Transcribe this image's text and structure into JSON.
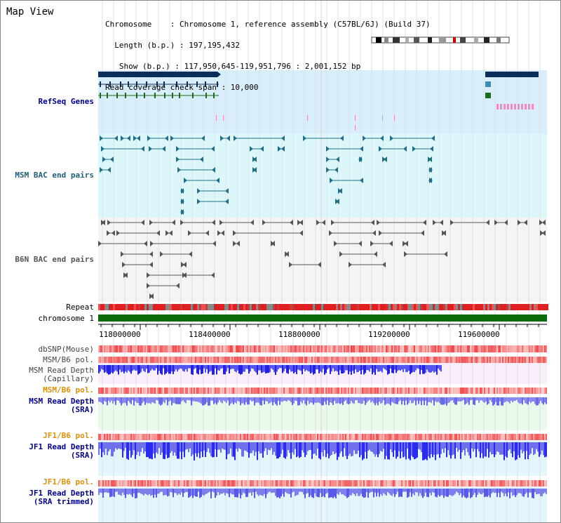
{
  "window": {
    "title": "Map View"
  },
  "header": {
    "lines": [
      "Chromosome    : Chromosome 1, reference assembly (C57BL/6J) (Build 37)",
      "  Length (b.p.) : 197,195,432",
      "   Show (b.p.) : 117,950,645-119,951,796 : 2,001,152 bp",
      "Read coverage check span : 10,000"
    ]
  },
  "tracks": {
    "refseq_genes": "RefSeq Genes",
    "msm_bac": "MSM BAC end pairs",
    "b6n_bac": "B6N BAC end pairs",
    "repeat": "Repeat",
    "chromosome": "chromosome 1",
    "dbsnp": "dbSNP(Mouse)",
    "msm_b6_pol_1": "MSM/B6 pol.",
    "msm_read_depth_cap": "MSM Read Depth\n(Capillary)",
    "msm_b6_pol_2": "MSM/B6 pol.",
    "msm_read_depth_sra": "MSM Read Depth\n(SRA)",
    "jf1_b6_pol_1": "JF1/B6 pol.",
    "jf1_read_depth_sra": "JF1 Read Depth\n(SRA)",
    "jf1_b6_pol_2": "JF1/B6 pol.",
    "jf1_read_depth_trim": "JF1 Read Depth\n(SRA trimmed)"
  },
  "axis": {
    "ticks": [
      "118000000",
      "118400000",
      "118800000",
      "119200000",
      "119600000"
    ]
  },
  "colors": {
    "gene_navy": "#0a2d5a",
    "gene_teal": "#3a8fb7",
    "gene_green": "#1a6b1a",
    "bac_teal": "#1f6f8b",
    "bac_gray": "#555555",
    "chrom_green": "#0a6b0a",
    "depth_blue": "#3333ee",
    "depth_light": "#7a7ae8",
    "pol_red": "#ee2222",
    "label_navy": "#000090",
    "label_orange": "#e09000"
  }
}
